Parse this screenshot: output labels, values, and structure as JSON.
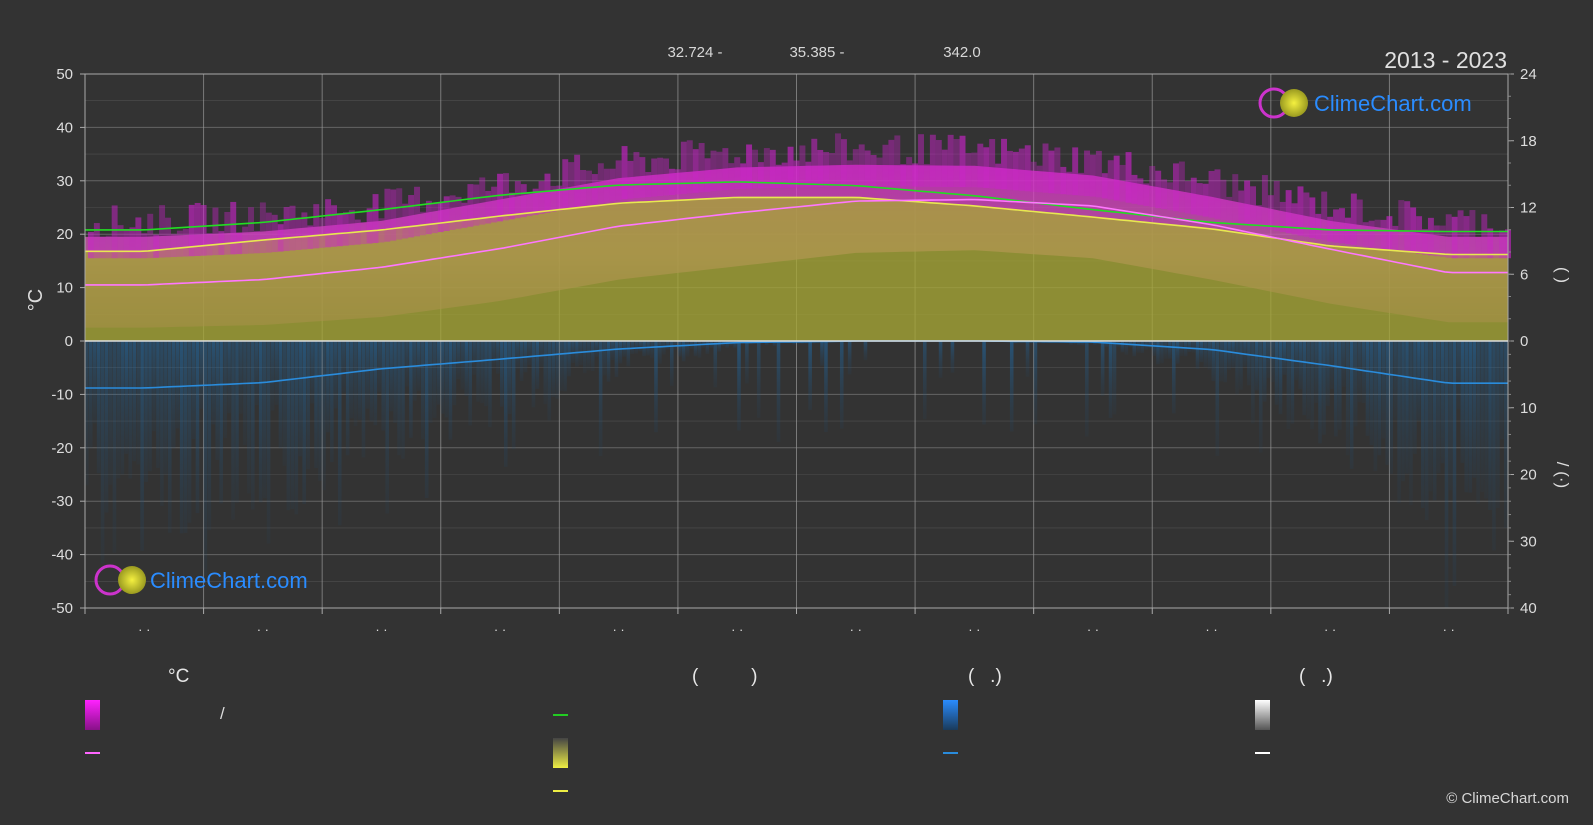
{
  "header": {
    "period": "2013 - 2023",
    "coords": [
      "32.724 -",
      "35.385 -",
      "342.0"
    ]
  },
  "watermark": {
    "brand": "ClimeChart.com"
  },
  "copyright": "© ClimeChart.com",
  "chart_data": {
    "type": "area",
    "ylabel_left": "°C",
    "left_axis": {
      "min": -50,
      "max": 50,
      "ticks": [
        50,
        40,
        30,
        20,
        10,
        0,
        -10,
        -20,
        -30,
        -40,
        -50
      ]
    },
    "right_axis_top": {
      "ticks": [
        24,
        18,
        12,
        6,
        0
      ],
      "label": "(   )"
    },
    "right_axis_bottom": {
      "ticks": [
        0,
        10,
        20,
        30,
        40
      ],
      "label": "/  (·)"
    },
    "month_labels": [
      "· ·",
      "· ·",
      "· ·",
      "· ·",
      "· ·",
      "· ·",
      "· ·",
      "· ·",
      "· ·",
      "· ·",
      "· ·",
      "· ·"
    ],
    "month_center": [
      0.5,
      1.5,
      2.5,
      3.5,
      4.5,
      5.5,
      6.5,
      7.5,
      8.5,
      9.5,
      10.5,
      11.5
    ],
    "series": [
      {
        "key": "daylight",
        "color": "#22dd22",
        "values": [
          20.8,
          22.2,
          24.6,
          27.3,
          29.2,
          29.8,
          29.1,
          27.2,
          24.6,
          22.2,
          20.8,
          20.5
        ]
      },
      {
        "key": "sunshine",
        "color": "#e8e850",
        "values": [
          16.8,
          18.9,
          20.8,
          23.4,
          25.8,
          26.9,
          26.9,
          25.3,
          23.2,
          21.0,
          17.8,
          16.2
        ]
      },
      {
        "key": "mean_temp",
        "color": "#ff77ff",
        "values": [
          10.5,
          11.5,
          13.8,
          17.3,
          21.5,
          24.0,
          26.2,
          26.5,
          25.3,
          21.8,
          17.2,
          12.8
        ]
      },
      {
        "key": "precip",
        "color": "#2a8cdc",
        "values": [
          -8.8,
          -7.8,
          -5.2,
          -3.4,
          -1.5,
          -0.3,
          0,
          0,
          -0.2,
          -1.6,
          -4.6,
          -7.9
        ]
      }
    ],
    "bands": {
      "temp_high": [
        19.5,
        20.5,
        22.5,
        26.5,
        30.5,
        32.5,
        33.0,
        32.8,
        31.0,
        27.0,
        22.5,
        19.5
      ],
      "temp_low": [
        2.5,
        3.0,
        4.5,
        7.5,
        11.5,
        14.0,
        16.5,
        17.0,
        15.5,
        11.5,
        7.0,
        3.5
      ],
      "sunshine_top": [
        16.8,
        18.9,
        20.8,
        23.4,
        25.8,
        26.9,
        26.9,
        25.3,
        23.2,
        21.0,
        17.8,
        16.2
      ]
    },
    "colors": {
      "background": "#333333",
      "grid": "#6a6a6a",
      "month_grid": "#999999",
      "zero_line": "#dddddd",
      "temp_band": "#d040c0",
      "sunshine_band": "#a6a634",
      "precip_bars": "#1f5f8f",
      "brand": "#2a8cff"
    }
  },
  "legend": {
    "columns": [
      {
        "header": "°C",
        "items": [
          {
            "kind": "gradient",
            "colors": [
              "#ff22ff",
              "#881188"
            ],
            "label": "/"
          },
          {
            "kind": "line",
            "color": "#ff66ff",
            "label": ""
          }
        ]
      },
      {
        "header": "(          )",
        "items": [
          {
            "kind": "line",
            "color": "#22cc22",
            "label": ""
          },
          {
            "kind": "gradient",
            "colors": [
              "#444444",
              "#eeee44"
            ],
            "label": ""
          },
          {
            "kind": "line",
            "color": "#eeee44",
            "label": ""
          }
        ]
      },
      {
        "header": "(   .)",
        "items": [
          {
            "kind": "gradient",
            "colors": [
              "#2a8cff",
              "#1a3a5a"
            ],
            "label": ""
          },
          {
            "kind": "line",
            "color": "#2a8cdc",
            "label": ""
          }
        ]
      },
      {
        "header": "(   .)",
        "items": [
          {
            "kind": "gradient",
            "colors": [
              "#ffffff",
              "#555555"
            ],
            "label": ""
          },
          {
            "kind": "line",
            "color": "#ffffff",
            "label": ""
          }
        ]
      }
    ]
  }
}
